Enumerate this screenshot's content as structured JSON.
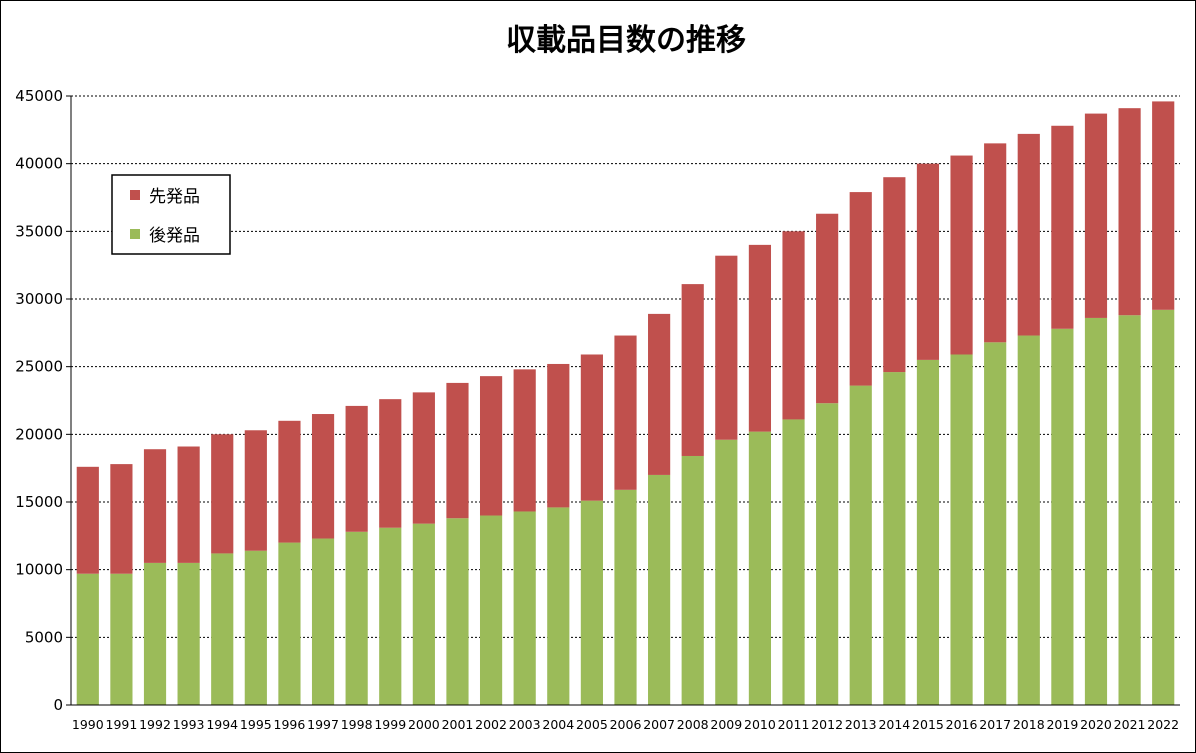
{
  "chart_data": {
    "type": "bar",
    "stacked": true,
    "title": "収載品目数の推移",
    "xlabel": "",
    "ylabel": "",
    "ylim": [
      0,
      45000
    ],
    "y_ticks": [
      0,
      5000,
      10000,
      15000,
      20000,
      25000,
      30000,
      35000,
      40000,
      45000
    ],
    "grid": "horizontal-dotted",
    "legend_position": "top-left",
    "categories": [
      "1990",
      "1991",
      "1992",
      "1993",
      "1994",
      "1995",
      "1996",
      "1997",
      "1998",
      "1999",
      "2000",
      "2001",
      "2002",
      "2003",
      "2004",
      "2005",
      "2006",
      "2007",
      "2008",
      "2009",
      "2010",
      "2011",
      "2012",
      "2013",
      "2014",
      "2015",
      "2016",
      "2017",
      "2018",
      "2019",
      "2020",
      "2021",
      "2022"
    ],
    "series": [
      {
        "name": "後発品",
        "color": "#9bbb59",
        "values": [
          9700,
          9700,
          10500,
          10500,
          11200,
          11400,
          12000,
          12300,
          12800,
          13100,
          13400,
          13800,
          14000,
          14300,
          14600,
          15100,
          15900,
          17000,
          18400,
          19600,
          20200,
          21100,
          22300,
          23600,
          24600,
          25500,
          25900,
          26800,
          27300,
          27800,
          28600,
          28800,
          29200
        ]
      },
      {
        "name": "先発品",
        "color": "#c0504d",
        "values": [
          7900,
          8100,
          8400,
          8600,
          8800,
          8900,
          9000,
          9200,
          9300,
          9500,
          9700,
          10000,
          10300,
          10500,
          10600,
          10800,
          11400,
          11900,
          12700,
          13600,
          13800,
          13900,
          14000,
          14300,
          14400,
          14500,
          14700,
          14700,
          14900,
          15000,
          15100,
          15300,
          15400
        ]
      }
    ]
  }
}
